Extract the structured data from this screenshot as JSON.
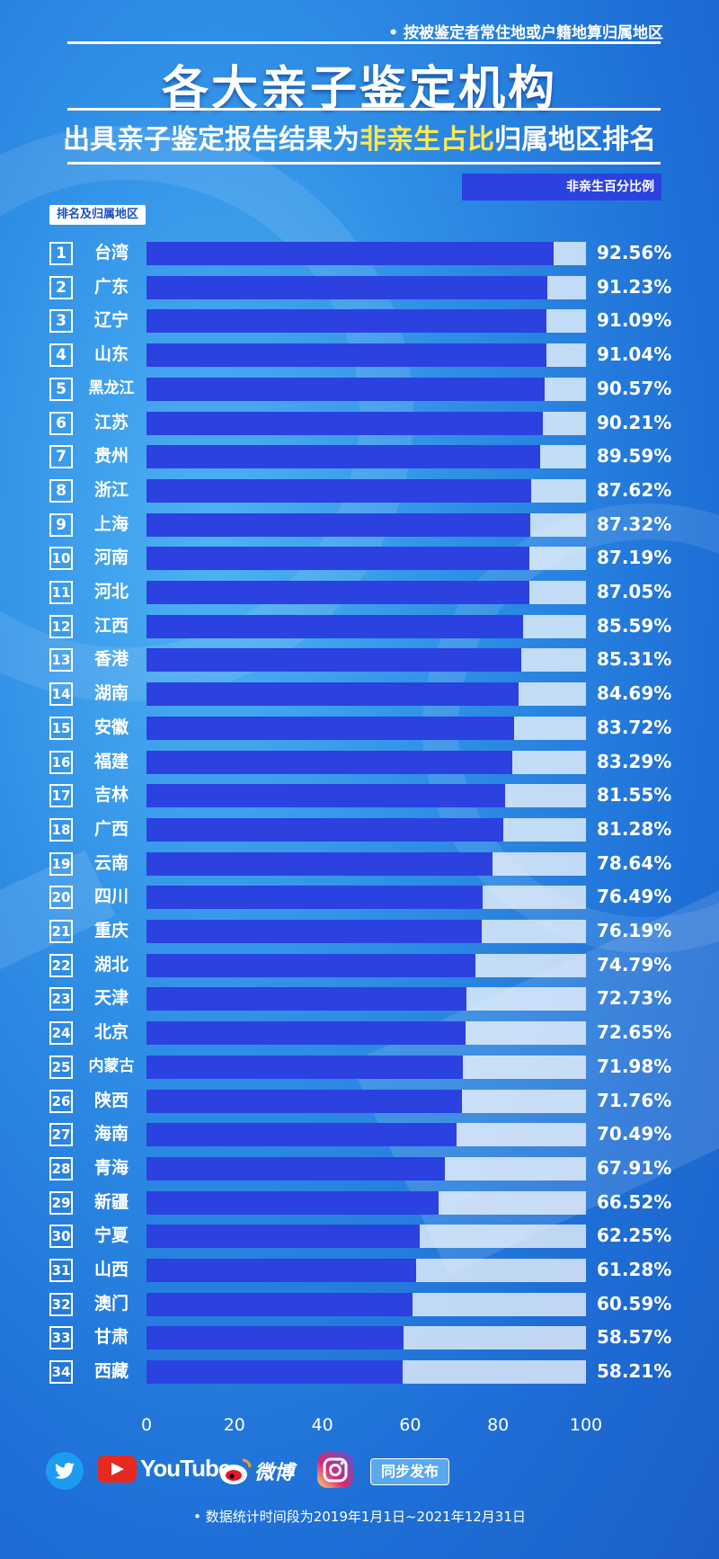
{
  "top_note": "• 按被鉴定者常住地或户籍地算归属地区",
  "title": "各大亲子鉴定机构",
  "subtitle_parts": [
    "出具亲子鉴定报告结果为",
    "非亲生占比",
    "归属地区排名"
  ],
  "legend_label": "非亲生百分比例",
  "rank_header": "排名及归属地区",
  "colors": {
    "bar": "#2b41e0",
    "track": "#c9dcf8",
    "highlight": "#ffe84a",
    "background": "#2f8fe6"
  },
  "chart_data": {
    "type": "bar",
    "orientation": "horizontal",
    "ranks": [
      "1",
      "2",
      "3",
      "4",
      "5",
      "6",
      "7",
      "8",
      "9",
      "10",
      "11",
      "12",
      "13",
      "14",
      "15",
      "16",
      "17",
      "18",
      "19",
      "20",
      "21",
      "22",
      "23",
      "24",
      "25",
      "26",
      "27",
      "28",
      "29",
      "30",
      "31",
      "32",
      "33",
      "34"
    ],
    "categories": [
      "台湾",
      "广东",
      "辽宁",
      "山东",
      "黑龙江",
      "江苏",
      "贵州",
      "浙江",
      "上海",
      "河南",
      "河北",
      "江西",
      "香港",
      "湖南",
      "安徽",
      "福建",
      "吉林",
      "广西",
      "云南",
      "四川",
      "重庆",
      "湖北",
      "天津",
      "北京",
      "内蒙古",
      "陕西",
      "海南",
      "青海",
      "新疆",
      "宁夏",
      "山西",
      "澳门",
      "甘肃",
      "西藏"
    ],
    "values": [
      92.56,
      91.23,
      91.09,
      91.04,
      90.57,
      90.21,
      89.59,
      87.62,
      87.32,
      87.19,
      87.05,
      85.59,
      85.31,
      84.69,
      83.72,
      83.29,
      81.55,
      81.28,
      78.64,
      76.49,
      76.19,
      74.79,
      72.73,
      72.65,
      71.98,
      71.76,
      70.49,
      67.91,
      66.52,
      62.25,
      61.28,
      60.59,
      58.57,
      58.21
    ],
    "value_labels": [
      "92.56%",
      "91.23%",
      "91.09%",
      "91.04%",
      "90.57%",
      "90.21%",
      "89.59%",
      "87.62%",
      "87.32%",
      "87.19%",
      "87.05%",
      "85.59%",
      "85.31%",
      "84.69%",
      "83.72%",
      "83.29%",
      "81.55%",
      "81.28%",
      "78.64%",
      "76.49%",
      "76.19%",
      "74.79%",
      "72.73%",
      "72.65%",
      "71.98%",
      "71.76%",
      "70.49%",
      "67.91%",
      "66.52%",
      "62.25%",
      "61.28%",
      "60.59%",
      "58.57%",
      "58.21%"
    ],
    "xlim": [
      0,
      100
    ],
    "x_ticks": [
      "0",
      "20",
      "40",
      "60",
      "80",
      "100"
    ],
    "series": [
      {
        "name": "非亲生百分比例"
      }
    ],
    "legend_position": "top-right",
    "grid": false
  },
  "social": {
    "youtube_label": "YouTube",
    "weibo_label": "微博",
    "sync_label": "同步发布",
    "icons": [
      "twitter-icon",
      "youtube-icon",
      "weibo-icon",
      "instagram-icon"
    ]
  },
  "footnote": "• 数据统计时间段为2019年1月1日~2021年12月31日"
}
